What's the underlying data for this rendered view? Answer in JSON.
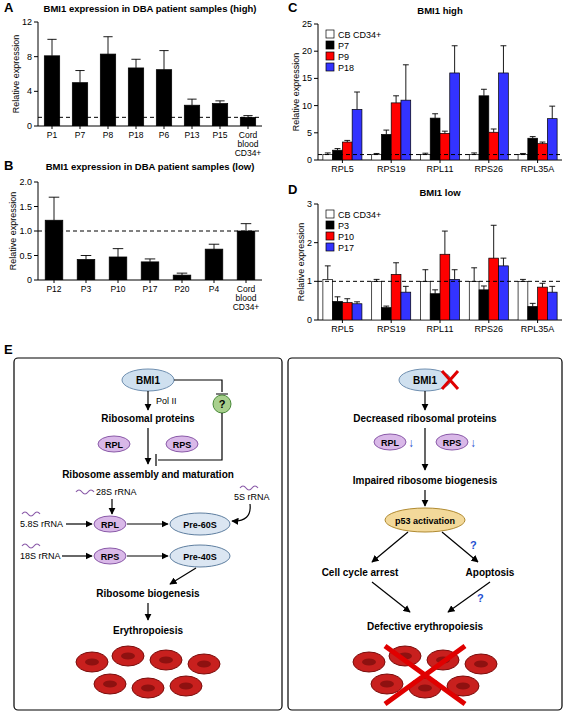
{
  "chart_data": [
    {
      "panel": "A",
      "type": "bar",
      "title": "BMI1 expression in DBA patient samples (high)",
      "y_label": "Relative expression",
      "categories": [
        "P1",
        "P7",
        "P8",
        "P18",
        "P6",
        "P13",
        "P15",
        "Cord blood CD34+"
      ],
      "values": [
        8.1,
        5.0,
        8.3,
        6.7,
        6.5,
        2.4,
        2.6,
        1.0
      ],
      "errors": [
        1.9,
        1.4,
        2.0,
        1.0,
        2.2,
        0.7,
        0.3,
        0.2
      ],
      "color": "#000000",
      "reference_line": 1,
      "ylim": [
        0,
        12
      ],
      "yticks": [
        0,
        4,
        8,
        12
      ]
    },
    {
      "panel": "B",
      "type": "bar",
      "title": "BMI1 expression in DBA patient samples (low)",
      "y_label": "Relative expression",
      "categories": [
        "P12",
        "P3",
        "P10",
        "P17",
        "P20",
        "P4",
        "Cord blood CD34+"
      ],
      "values": [
        1.22,
        0.42,
        0.47,
        0.37,
        0.1,
        0.63,
        1.0
      ],
      "errors": [
        0.47,
        0.08,
        0.17,
        0.06,
        0.04,
        0.1,
        0.15
      ],
      "color": "#000000",
      "reference_line": 1,
      "ylim": [
        0,
        2
      ],
      "yticks": [
        0,
        0.5,
        {
          "value": 1,
          "label": "1.0"
        },
        1.5,
        {
          "value": 2,
          "label": "2.0"
        }
      ]
    },
    {
      "panel": "C",
      "type": "bar",
      "title": "BMI1 high",
      "y_label": "Relative expression",
      "categories": [
        "RPL5",
        "RPS19",
        "RPL11",
        "RPS26",
        "RPL35A"
      ],
      "series": [
        {
          "name": "CB CD34+",
          "color": "#ffffff",
          "values": [
            1.0,
            1.0,
            1.0,
            1.0,
            1.0
          ],
          "errors": [
            0.3,
            0.2,
            0.25,
            0.3,
            0.2
          ]
        },
        {
          "name": "P7",
          "color": "#000000",
          "values": [
            1.8,
            4.7,
            7.7,
            11.8,
            4.0
          ],
          "errors": [
            0.3,
            0.8,
            0.8,
            1.2,
            0.3
          ]
        },
        {
          "name": "P9",
          "color": "#ff0000",
          "values": [
            3.3,
            10.5,
            4.9,
            5.1,
            3.0
          ],
          "errors": [
            0.3,
            1.3,
            0.4,
            0.6,
            0.3
          ]
        },
        {
          "name": "P18",
          "color": "#3333ff",
          "values": [
            9.3,
            11.0,
            16.0,
            16.0,
            7.6
          ],
          "errors": [
            3.2,
            6.5,
            5.0,
            5.0,
            2.3
          ]
        }
      ],
      "reference_line": 1,
      "ylim": [
        0,
        25
      ],
      "yticks": [
        0,
        5,
        10,
        15,
        20,
        25
      ],
      "legend": "top-left"
    },
    {
      "panel": "D",
      "type": "bar",
      "title": "BMI1 low",
      "y_label": "Relative expression",
      "categories": [
        "RPL5",
        "RPS19",
        "RPL11",
        "RPS26",
        "RPL35A"
      ],
      "series": [
        {
          "name": "CB CD34+",
          "color": "#ffffff",
          "values": [
            1.05,
            1.0,
            1.0,
            1.0,
            1.0
          ],
          "errors": [
            0.35,
            0.05,
            0.3,
            0.35,
            0.05
          ]
        },
        {
          "name": "P3",
          "color": "#000000",
          "values": [
            0.48,
            0.32,
            0.68,
            0.78,
            0.35
          ],
          "errors": [
            0.12,
            0.04,
            0.1,
            0.1,
            0.08
          ]
        },
        {
          "name": "P10",
          "color": "#ff0000",
          "values": [
            0.45,
            1.18,
            1.7,
            1.6,
            0.85
          ],
          "errors": [
            0.1,
            0.3,
            0.6,
            0.85,
            0.1
          ]
        },
        {
          "name": "P17",
          "color": "#3333ff",
          "values": [
            0.42,
            0.72,
            1.05,
            1.4,
            0.72
          ],
          "errors": [
            0.05,
            0.15,
            0.25,
            0.2,
            0.15
          ]
        }
      ],
      "reference_line": 1,
      "ylim": [
        0,
        3
      ],
      "yticks": [
        0,
        1,
        2,
        3
      ],
      "legend": "top-left"
    }
  ],
  "diagram": {
    "panel": "E",
    "left": {
      "bmi1": "BMI1",
      "pol": "Pol II",
      "unknown": "?",
      "ribosomal_proteins": "Ribosomal proteins",
      "rpl": "RPL",
      "rps": "RPS",
      "assembly": "Ribosome assembly and maturation",
      "rrna_28s": "28S rRNA",
      "rrna_58s": "5.8S rRNA",
      "rrna_18s": "18S rRNA",
      "rrna_5s": "5S rRNA",
      "pre60s": "Pre-60S",
      "pre40s": "Pre-40S",
      "biogenesis": "Ribosome biogenesis",
      "erythropoiesis": "Erythropoiesis"
    },
    "right": {
      "bmi1": "BMI1",
      "decreased": "Decreased ribosomal proteins",
      "rpl": "RPL",
      "rps": "RPS",
      "down": "↓",
      "impaired": "Impaired ribosome biogenesis",
      "p53": "p53 activation",
      "arrest": "Cell cycle arrest",
      "apoptosis": "Apoptosis",
      "unknown": "?",
      "defective": "Defective erythropoiesis"
    }
  }
}
